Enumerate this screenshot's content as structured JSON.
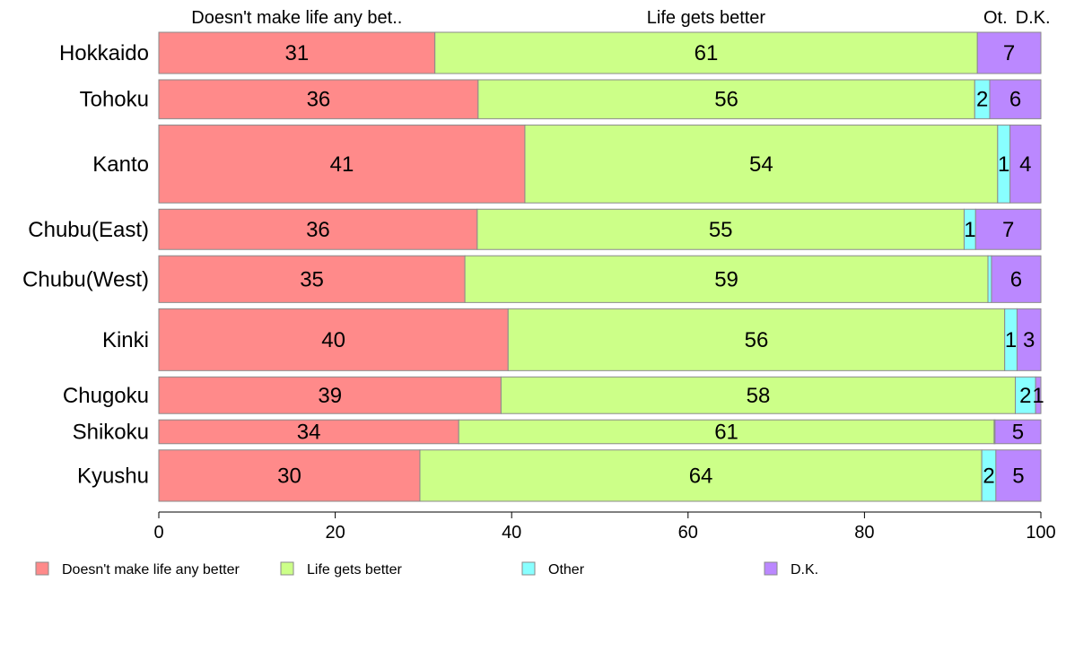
{
  "chart_data": {
    "type": "bar",
    "orientation": "horizontal",
    "stacked": true,
    "column_headers": [
      "Doesn't make life any bet..",
      "Life gets better",
      "Ot.",
      "D.K."
    ],
    "categories": [
      "Hokkaido",
      "Tohoku",
      "Kanto",
      "Chubu(East)",
      "Chubu(West)",
      "Kinki",
      "Chugoku",
      "Shikoku",
      "Kyushu"
    ],
    "series": [
      {
        "name": "Doesn't make life any better",
        "color": "#FF8A8A",
        "values": [
          31.3,
          36.2,
          41.5,
          36.1,
          34.7,
          39.6,
          38.8,
          34.0,
          29.6
        ],
        "labels": [
          "31",
          "36",
          "41",
          "36",
          "35",
          "40",
          "39",
          "34",
          "30"
        ]
      },
      {
        "name": "Life gets better",
        "color": "#CCFF88",
        "values": [
          61.5,
          56.3,
          53.6,
          55.2,
          59.3,
          56.3,
          58.3,
          60.7,
          63.7
        ],
        "labels": [
          "61",
          "56",
          "54",
          "55",
          "59",
          "56",
          "58",
          "61",
          "64"
        ]
      },
      {
        "name": "Other",
        "color": "#88FFFF",
        "values": [
          0.0,
          1.7,
          1.4,
          1.3,
          0.4,
          1.4,
          2.3,
          0.1,
          1.6
        ],
        "labels": [
          "",
          "2",
          "1",
          "1",
          "",
          "1",
          "2",
          "",
          "2"
        ]
      },
      {
        "name": "D.K.",
        "color": "#BB88FF",
        "values": [
          7.2,
          5.8,
          3.5,
          7.4,
          5.6,
          2.7,
          0.6,
          5.2,
          5.1
        ],
        "labels": [
          "7",
          "6",
          "4",
          "7",
          "6",
          "3",
          "1",
          "5",
          "5"
        ]
      }
    ],
    "sample_weights": [
      0.9,
      0.85,
      1.7,
      0.88,
      1.02,
      1.35,
      0.8,
      0.52,
      1.12
    ],
    "xlim": [
      0,
      100
    ],
    "x_ticks": [
      "0",
      "20",
      "40",
      "60",
      "80",
      "100"
    ],
    "legend_position": "bottom",
    "grid": false,
    "title": "",
    "xlabel": "",
    "ylabel": ""
  }
}
